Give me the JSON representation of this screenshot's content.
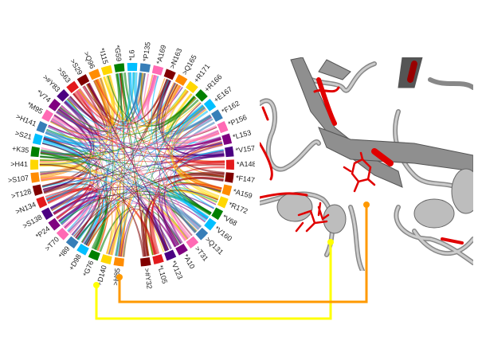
{
  "chord": {
    "segments": [
      {
        "label": ">H85",
        "color": "#ff8c00"
      },
      {
        "label": "+D140",
        "color": "#ffd700"
      },
      {
        "label": "*G76",
        "color": "#008000"
      },
      {
        "label": "+D98",
        "color": "#00bfff"
      },
      {
        "label": "*I89",
        "color": "#377eb8"
      },
      {
        "label": ">T70",
        "color": "#ff69b4"
      },
      {
        "label": "*P24",
        "color": "#800080"
      },
      {
        "label": ">S138",
        "color": "#4b0082"
      },
      {
        "label": ">N134",
        "color": "#e31a1c"
      },
      {
        "label": ">T128",
        "color": "#800000"
      },
      {
        "label": ">S107",
        "color": "#ff8c00"
      },
      {
        "label": ">H41",
        "color": "#ffd700"
      },
      {
        "label": "+K35",
        "color": "#008000"
      },
      {
        "label": ">S21",
        "color": "#00bfff"
      },
      {
        "label": ">H141",
        "color": "#377eb8"
      },
      {
        "label": "*M95",
        "color": "#ff69b4"
      },
      {
        "label": "*V74",
        "color": "#800080"
      },
      {
        "label": ">#Y83",
        "color": "#4b0082"
      },
      {
        "label": ">S63",
        "color": "#e31a1c"
      },
      {
        "label": ">S29",
        "color": "#800000"
      },
      {
        "label": ">Q96",
        "color": "#ff8c00"
      },
      {
        "label": "*I115",
        "color": "#ffd700"
      },
      {
        "label": "*G59",
        "color": "#008000"
      },
      {
        "label": "*L6",
        "color": "#00bfff"
      },
      {
        "label": "*P135",
        "color": "#377eb8"
      },
      {
        "label": "*A169",
        "color": "#ff69b4"
      },
      {
        "label": ">N163",
        "color": "#800000"
      },
      {
        "label": ">Q165",
        "color": "#ff8c00"
      },
      {
        "label": "+R171",
        "color": "#ffd700"
      },
      {
        "label": "+R166",
        "color": "#008000"
      },
      {
        "label": "+E167",
        "color": "#00bfff"
      },
      {
        "label": "*F162",
        "color": "#377eb8"
      },
      {
        "label": "*P156",
        "color": "#ff69b4"
      },
      {
        "label": "*L153",
        "color": "#800080"
      },
      {
        "label": "*V157",
        "color": "#4b0082"
      },
      {
        "label": "*A148",
        "color": "#e31a1c"
      },
      {
        "label": "*F147",
        "color": "#800000"
      },
      {
        "label": "*A159",
        "color": "#ff8c00"
      },
      {
        "label": "*R172",
        "color": "#ffd700"
      },
      {
        "label": "*V68",
        "color": "#008000"
      },
      {
        "label": "*V160",
        "color": "#00bfff"
      },
      {
        "label": ">Q131",
        "color": "#377eb8"
      },
      {
        "label": ">T31",
        "color": "#ff69b4"
      },
      {
        "label": "*A10",
        "color": "#800080"
      },
      {
        "label": "*V123",
        "color": "#4b0082"
      },
      {
        "label": "*L105",
        "color": "#e31a1c"
      },
      {
        "label": ">#Y32",
        "color": "#800000"
      }
    ]
  },
  "connectors": [
    {
      "from": "+D140",
      "color": "#ffff00"
    },
    {
      "from": ">H85",
      "color": "#ff9900"
    }
  ],
  "structure": {
    "backbone_color": "#a9a9a9",
    "highlight_color": "#e00000"
  }
}
